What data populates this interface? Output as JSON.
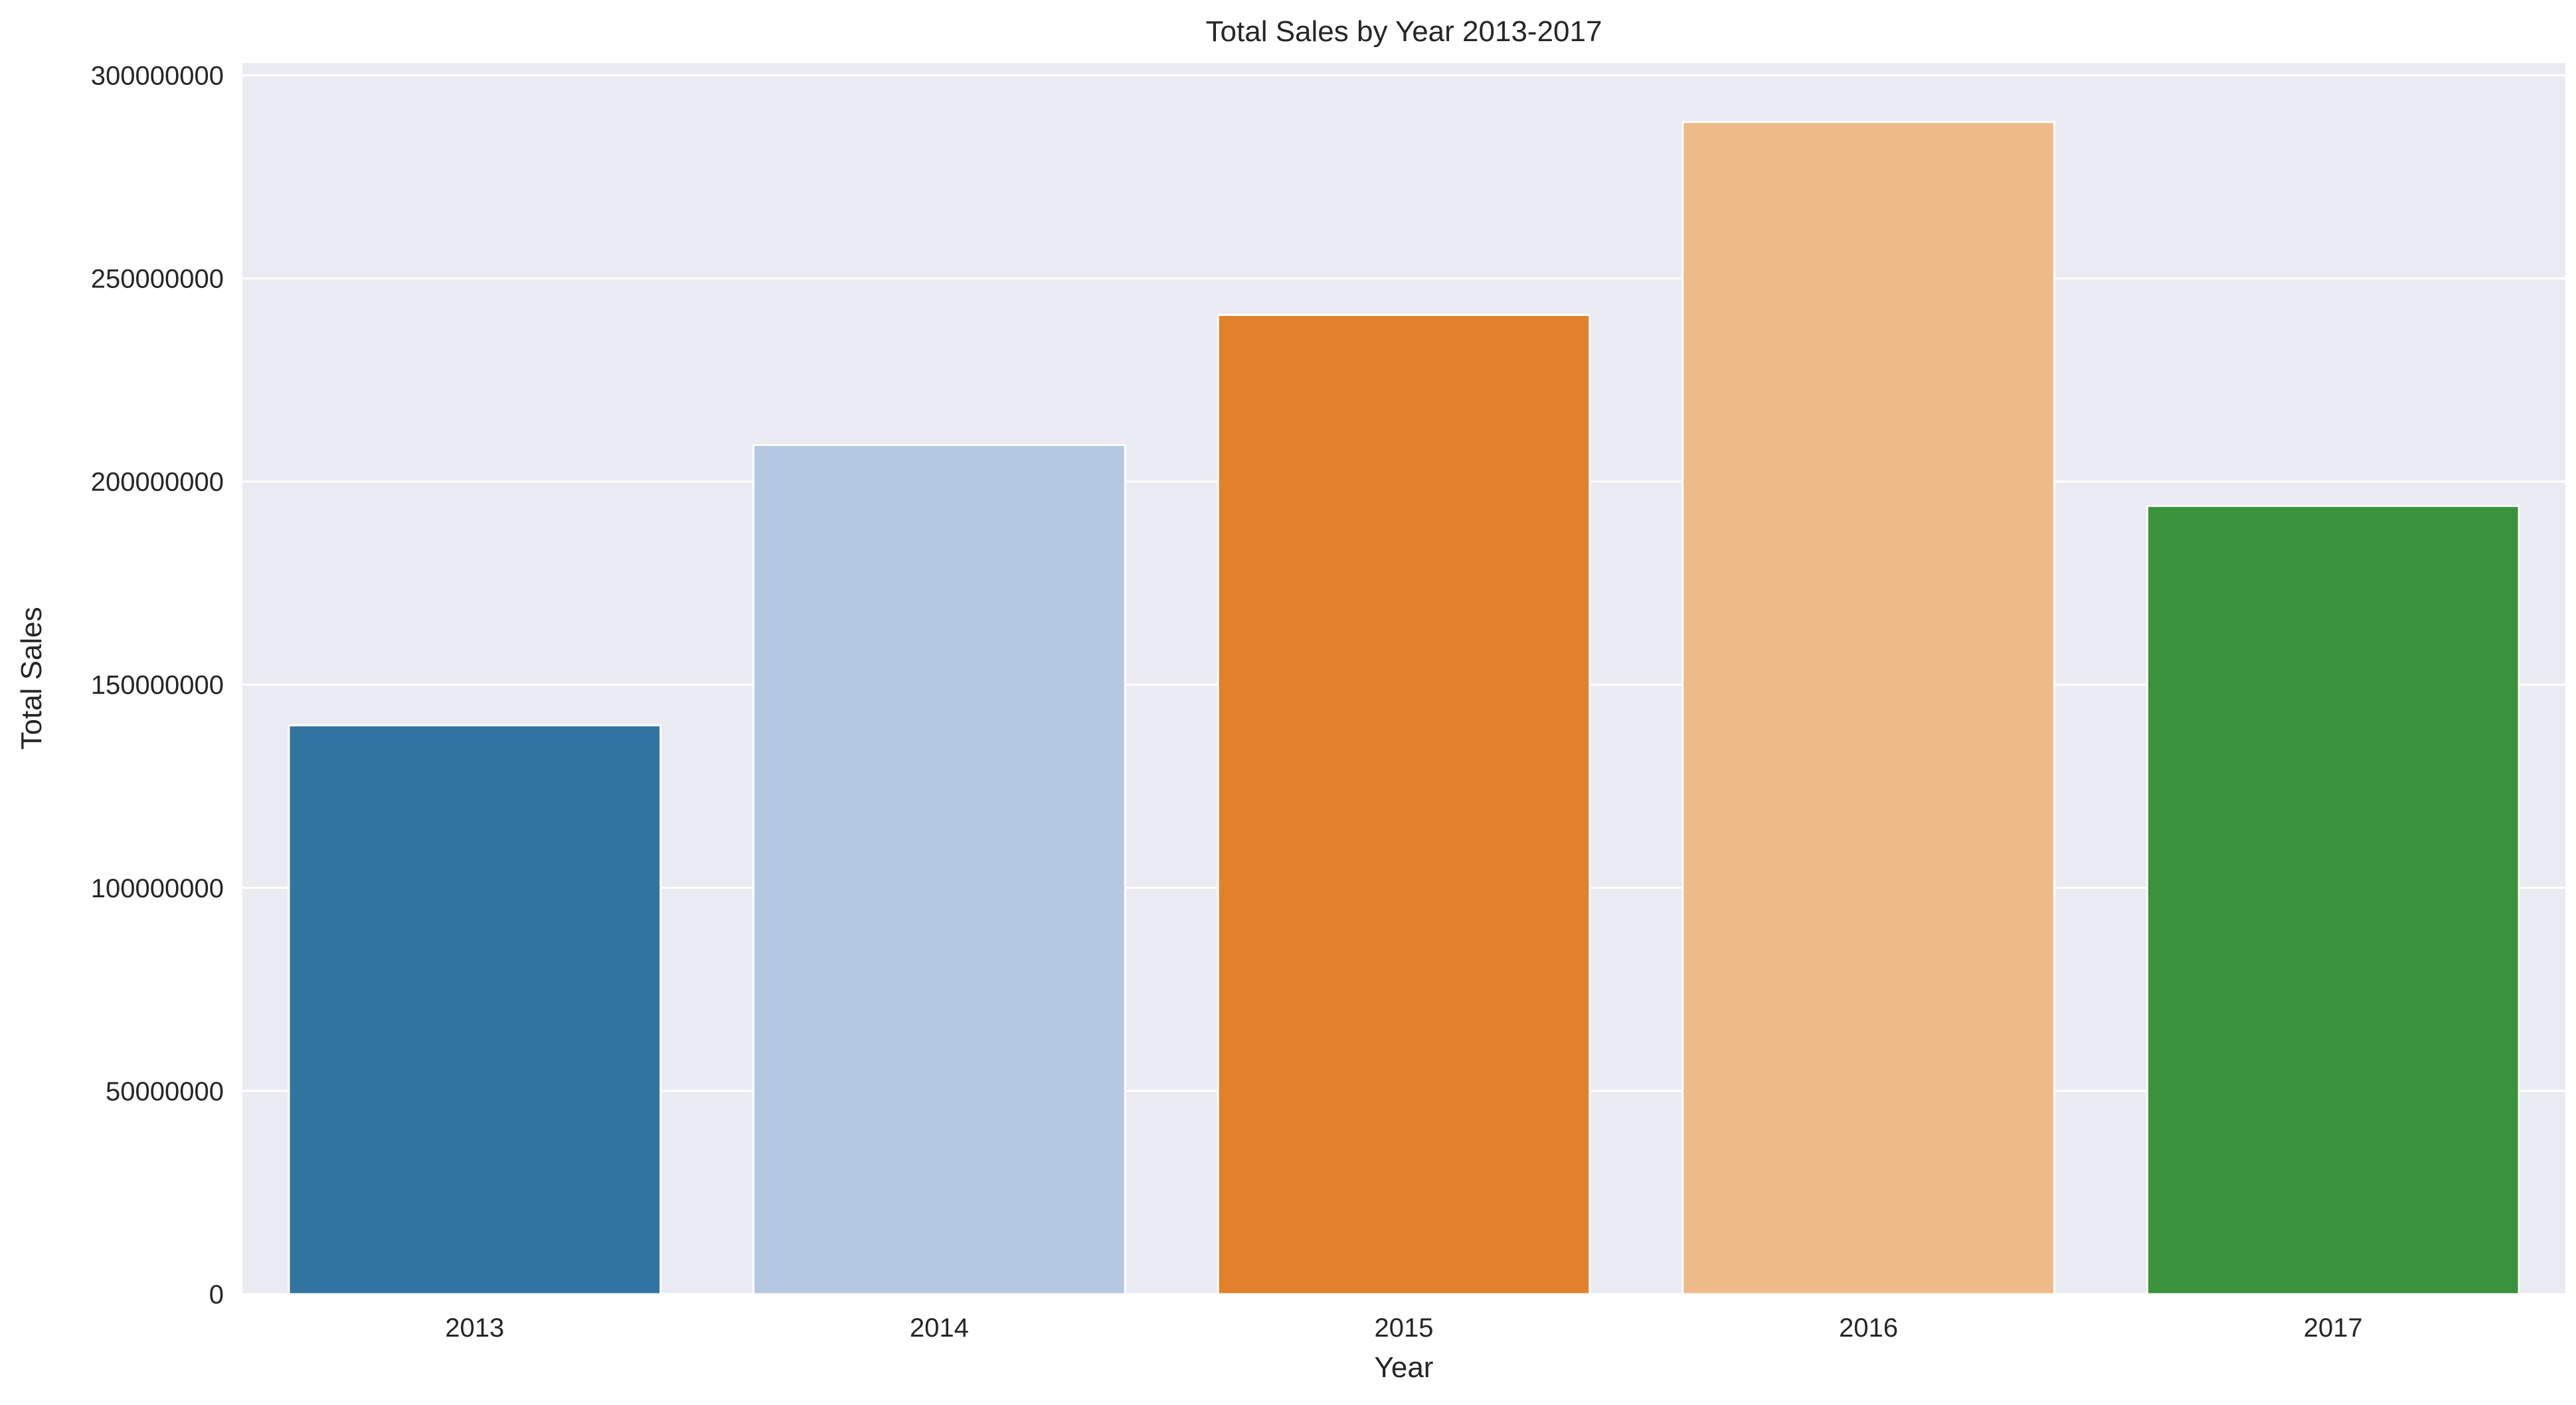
{
  "chart_data": {
    "type": "bar",
    "title": "Total Sales by Year 2013-2017",
    "xlabel": "Year",
    "ylabel": "Total Sales",
    "categories": [
      "2013",
      "2014",
      "2015",
      "2016",
      "2017"
    ],
    "values": [
      140000000,
      209000000,
      241000000,
      288500000,
      194000000
    ],
    "colors": [
      "#3274a1",
      "#b4c8e1",
      "#e1812c",
      "#eebb88",
      "#3a923a"
    ],
    "ylim": [
      0,
      303000000
    ],
    "yticks": [
      0,
      50000000,
      100000000,
      150000000,
      200000000,
      250000000,
      300000000
    ],
    "ytick_labels": [
      "0",
      "50000000",
      "100000000",
      "150000000",
      "200000000",
      "250000000",
      "300000000"
    ],
    "grid": true,
    "legend": false,
    "background_color": "#eaeaf2",
    "gridline_color": "#ffffff"
  }
}
